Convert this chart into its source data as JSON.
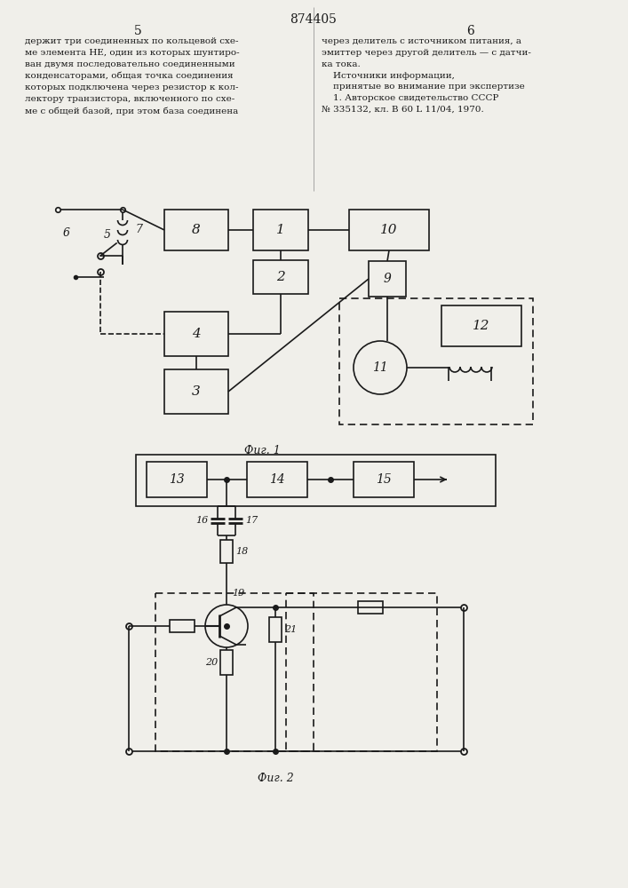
{
  "title": "874405",
  "page_left": "5",
  "page_right": "6",
  "text_left": "держит три соединенных по кольцевой схе-\nме элемента НЕ, один из которых шунтиро-\nван двумя последовательно соединенными\nконденсаторами, общая точка соединения\nкоторых подключена через резистор к кол-\nлектору транзистора, включенного по схе-\nме с общей базой, при этом база соединена",
  "text_right": "через делитель с источником питания, а\nэмиттер через другой делитель — с датчи-\nка тока.\n    Источники информации,\n    принятые во внимание при экспертизе\n    1. Авторское свидетельство СССР\n№ 335132, кл. В 60 L 11/04, 1970.",
  "fig1_label": "Фиг. 1",
  "fig2_label": "Фиг. 2",
  "bg_color": "#f0efea",
  "line_color": "#1a1a1a",
  "font_size_title": 10,
  "font_size_text": 7.5,
  "font_size_label": 9
}
